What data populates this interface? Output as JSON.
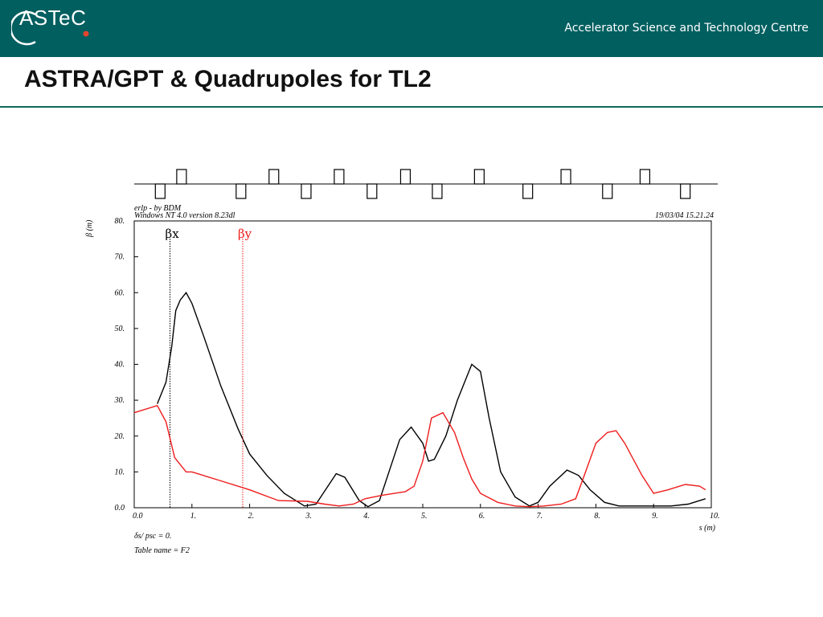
{
  "header": {
    "logo_text": "ASTeC",
    "organization": "Accelerator Science and Technology Centre",
    "accent_color": "#e5452f",
    "banner_color": "#025f60"
  },
  "page": {
    "title": "ASTRA/GPT & Quadrupoles for TL2"
  },
  "chart_data": {
    "type": "line",
    "header_left_1": "erlp - by BDM",
    "header_left_2": "Windows NT 4.0 version 8.23dl",
    "header_right": "19/03/04  15.21.24",
    "xlabel": "s (m)",
    "ylabel": "β (m)",
    "xlim": [
      0,
      10
    ],
    "ylim": [
      0,
      80
    ],
    "xticks": [
      "0.0",
      "1.",
      "2.",
      "3.",
      "4.",
      "5.",
      "6.",
      "7.",
      "8.",
      "9.",
      "10."
    ],
    "yticks": [
      "0.0",
      "10.",
      "20.",
      "30.",
      "40.",
      "50.",
      "60.",
      "70.",
      "80."
    ],
    "footer_1": "δs/ psc  =  0.",
    "footer_2": "Table name = F2",
    "quadrupoles": [
      {
        "s": 0.45,
        "side": "down"
      },
      {
        "s": 0.82,
        "side": "up"
      },
      {
        "s": 1.85,
        "side": "down"
      },
      {
        "s": 2.42,
        "side": "up"
      },
      {
        "s": 2.98,
        "side": "down"
      },
      {
        "s": 3.55,
        "side": "up"
      },
      {
        "s": 4.12,
        "side": "down"
      },
      {
        "s": 4.7,
        "side": "up"
      },
      {
        "s": 5.25,
        "side": "down"
      },
      {
        "s": 5.98,
        "side": "up"
      },
      {
        "s": 6.82,
        "side": "down"
      },
      {
        "s": 7.48,
        "side": "up"
      },
      {
        "s": 8.2,
        "side": "down"
      },
      {
        "s": 8.85,
        "side": "up"
      },
      {
        "s": 9.55,
        "side": "down"
      }
    ],
    "series": [
      {
        "name": "βx",
        "color": "#000000",
        "label_s": 0.62,
        "x": [
          0.4,
          0.55,
          0.65,
          0.72,
          0.8,
          0.9,
          1.0,
          1.2,
          1.5,
          1.8,
          2.0,
          2.3,
          2.6,
          2.95,
          3.15,
          3.5,
          3.65,
          3.9,
          4.05,
          4.25,
          4.6,
          4.8,
          5.0,
          5.1,
          5.2,
          5.4,
          5.6,
          5.75,
          5.85,
          6.0,
          6.15,
          6.35,
          6.6,
          6.85,
          7.0,
          7.2,
          7.5,
          7.7,
          7.9,
          8.15,
          8.4,
          8.7,
          9.0,
          9.3,
          9.6,
          9.9
        ],
        "y": [
          29,
          35,
          45,
          55,
          58,
          60,
          57,
          48,
          34,
          22,
          15,
          9,
          4,
          0.5,
          1,
          9.5,
          8.5,
          2,
          0.3,
          2,
          19,
          22.5,
          18,
          13,
          13.5,
          20,
          30,
          36,
          40,
          38,
          25,
          10,
          3,
          0.5,
          1.5,
          6,
          10.5,
          9,
          5,
          1.5,
          0.5,
          0.5,
          0.5,
          0.5,
          1,
          2.5
        ]
      },
      {
        "name": "βy",
        "color": "#ee1c1c",
        "label_s": 1.88,
        "x": [
          0.0,
          0.4,
          0.55,
          0.7,
          0.9,
          1.0,
          1.5,
          2.0,
          2.5,
          3.0,
          3.3,
          3.55,
          3.8,
          4.0,
          4.3,
          4.7,
          4.85,
          5.0,
          5.15,
          5.35,
          5.55,
          5.7,
          5.85,
          6.0,
          6.3,
          6.6,
          6.85,
          7.1,
          7.4,
          7.65,
          7.8,
          8.0,
          8.2,
          8.35,
          8.5,
          8.8,
          9.0,
          9.25,
          9.55,
          9.8,
          9.9
        ],
        "y": [
          26.5,
          28.5,
          24,
          14,
          10,
          10,
          7.5,
          5,
          2,
          1.8,
          1,
          0.5,
          1,
          2.5,
          3.5,
          4.5,
          6,
          13,
          25,
          26.5,
          21,
          14,
          8,
          4,
          1.5,
          0.5,
          0.3,
          0.5,
          1,
          2.5,
          9,
          18,
          21,
          21.5,
          18,
          9,
          4,
          5,
          6.5,
          6,
          5
        ]
      }
    ]
  }
}
